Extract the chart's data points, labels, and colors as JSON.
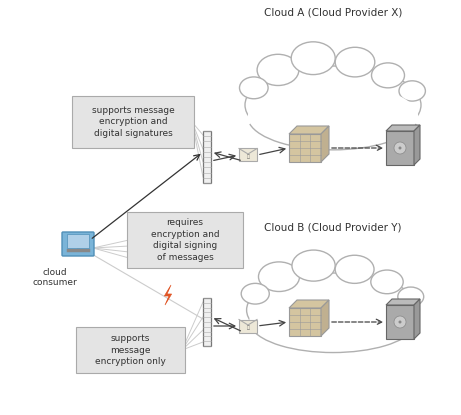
{
  "title_a": "Cloud A (Cloud Provider X)",
  "title_b": "Cloud B (Cloud Provider Y)",
  "label_consumer": "cloud\nconsumer",
  "label_box1": "supports message\nencryption and\ndigital signatures",
  "label_box2": "requires\nencryption and\ndigital signing\nof messages",
  "label_box3": "supports\nmessage\nencryption only",
  "bg_color": "#ffffff",
  "cloud_edge_color": "#b0b0b0",
  "cloud_fill_color": "#ffffff",
  "box_fill": "#e2e2e2",
  "box_edge": "#aaaaaa",
  "text_color": "#333333",
  "lightning_color": "#e05525",
  "fan_color": "#d8d8d8",
  "arrow_color": "#444444",
  "fw_fill": "#f0f0f0",
  "fw_edge": "#777777",
  "router_color": "#d4c5a0",
  "server_color": "#999999",
  "env_color": "#ede8d8"
}
